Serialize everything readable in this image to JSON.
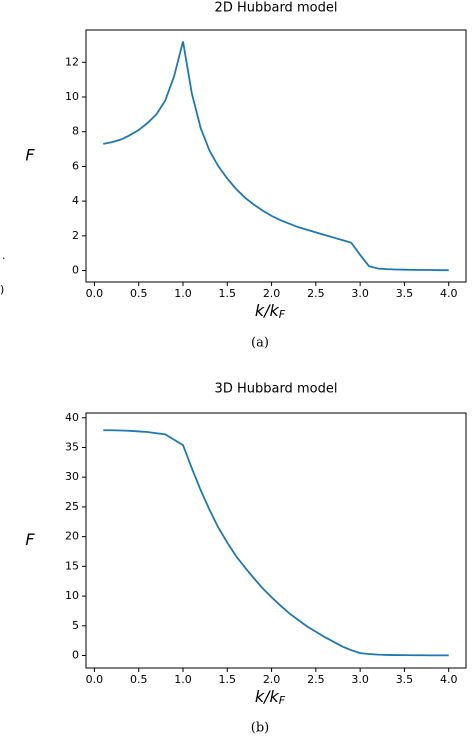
{
  "chart_data": [
    {
      "type": "line",
      "title": "2D Hubbard model",
      "caption": "(a)",
      "xlabel": {
        "text": "k/k",
        "subscript": "F"
      },
      "ylabel": "F",
      "x": [
        0.1,
        0.2,
        0.3,
        0.4,
        0.5,
        0.6,
        0.7,
        0.8,
        0.9,
        1.0,
        1.1,
        1.2,
        1.3,
        1.4,
        1.5,
        1.6,
        1.7,
        1.8,
        1.9,
        2.0,
        2.1,
        2.2,
        2.3,
        2.4,
        2.5,
        2.6,
        2.7,
        2.8,
        2.9,
        3.0,
        3.1,
        3.2,
        3.3,
        3.4,
        3.5,
        3.6,
        3.7,
        3.8,
        3.9,
        4.0
      ],
      "series": [
        {
          "color": "#1f77b4",
          "values": [
            7.3,
            7.4,
            7.55,
            7.8,
            8.1,
            8.5,
            9.0,
            9.8,
            11.2,
            13.2,
            10.2,
            8.2,
            6.9,
            6.0,
            5.3,
            4.7,
            4.2,
            3.8,
            3.45,
            3.15,
            2.9,
            2.7,
            2.5,
            2.35,
            2.2,
            2.05,
            1.9,
            1.75,
            1.6,
            0.9,
            0.25,
            0.12,
            0.08,
            0.06,
            0.05,
            0.04,
            0.03,
            0.03,
            0.02,
            0.02
          ]
        }
      ],
      "xlim": [
        -0.095,
        4.195
      ],
      "ylim": [
        -0.66,
        13.86
      ],
      "xticks": [
        {
          "value": 0,
          "label": "0.0"
        },
        0.5,
        {
          "value": 1,
          "label": "1.0"
        },
        1.5,
        {
          "value": 2,
          "label": "2.0"
        },
        2.5,
        {
          "value": 3,
          "label": "3.0"
        },
        3.5,
        {
          "value": 4,
          "label": "4.0"
        }
      ],
      "yticks": [
        0,
        2,
        4,
        6,
        8,
        10,
        12
      ]
    },
    {
      "type": "line",
      "title": "3D Hubbard model",
      "caption": "(b)",
      "xlabel": {
        "text": "k/k",
        "subscript": "F"
      },
      "ylabel": "F",
      "x": [
        0.1,
        0.2,
        0.3,
        0.4,
        0.5,
        0.6,
        0.7,
        0.8,
        0.9,
        1.0,
        1.1,
        1.2,
        1.3,
        1.4,
        1.5,
        1.6,
        1.7,
        1.8,
        1.9,
        2.0,
        2.1,
        2.2,
        2.3,
        2.4,
        2.5,
        2.6,
        2.7,
        2.8,
        2.9,
        3.0,
        3.1,
        3.2,
        3.3,
        3.4,
        3.5,
        3.6,
        3.7,
        3.8,
        3.9,
        4.0
      ],
      "series": [
        {
          "color": "#1f77b4",
          "values": [
            37.9,
            37.9,
            37.85,
            37.8,
            37.7,
            37.6,
            37.4,
            37.2,
            36.3,
            35.4,
            31.5,
            27.8,
            24.5,
            21.5,
            19.0,
            16.7,
            14.8,
            13.0,
            11.3,
            9.8,
            8.4,
            7.1,
            6.0,
            4.9,
            4.0,
            3.1,
            2.3,
            1.5,
            0.9,
            0.4,
            0.25,
            0.15,
            0.1,
            0.08,
            0.06,
            0.05,
            0.04,
            0.03,
            0.02,
            0.02
          ]
        }
      ],
      "xlim": [
        -0.095,
        4.195
      ],
      "ylim": [
        -2.1,
        40.8
      ],
      "xticks": [
        {
          "value": 0,
          "label": "0.0"
        },
        0.5,
        {
          "value": 1,
          "label": "1.0"
        },
        1.5,
        {
          "value": 2,
          "label": "2.0"
        },
        2.5,
        {
          "value": 3,
          "label": "3.0"
        },
        3.5,
        {
          "value": 4,
          "label": "4.0"
        }
      ],
      "yticks": [
        0,
        5,
        10,
        15,
        20,
        25,
        30,
        35,
        40
      ]
    }
  ],
  "left_fragments": [
    ".",
    ")"
  ]
}
